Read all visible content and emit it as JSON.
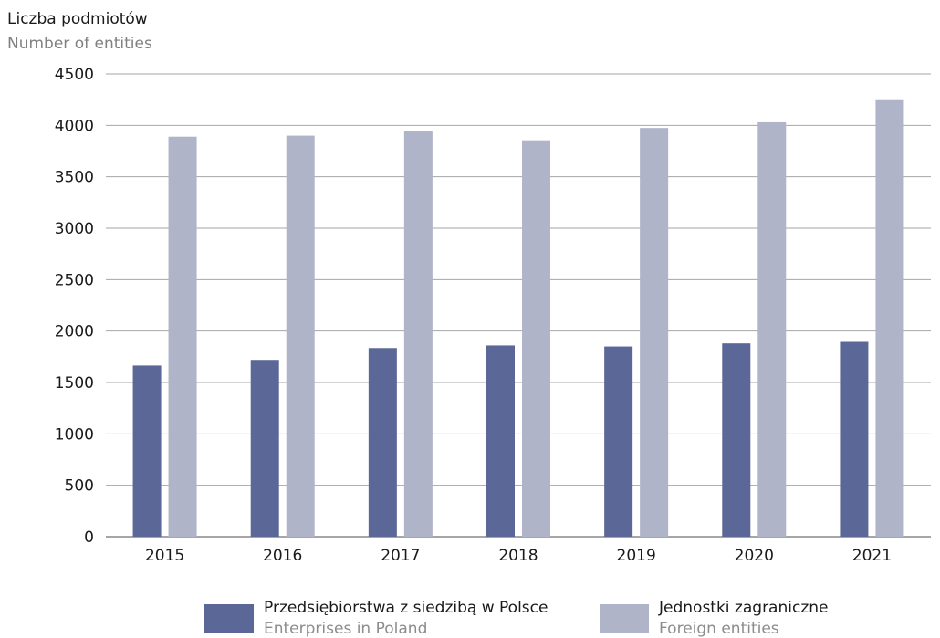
{
  "chart_data": {
    "type": "bar",
    "ylabel": "Liczba podmiotów",
    "ylabel_en": "Number of entities",
    "categories": [
      "2015",
      "2016",
      "2017",
      "2018",
      "2019",
      "2020",
      "2021"
    ],
    "ylim": [
      0,
      4500
    ],
    "yticks": [
      0,
      500,
      1000,
      1500,
      2000,
      2500,
      3000,
      3500,
      4000,
      4500
    ],
    "grid": true,
    "legend_position": "bottom",
    "series": [
      {
        "name": "Przedsiębiorstwa z siedzibą w Polsce",
        "name_en": "Enterprises in Poland",
        "color": "#5b6796",
        "values": [
          1665,
          1720,
          1835,
          1860,
          1850,
          1880,
          1895
        ]
      },
      {
        "name": "Jednostki zagraniczne",
        "name_en": "Foreign entities",
        "color": "#afb4c8",
        "values": [
          3890,
          3900,
          3945,
          3855,
          3975,
          4030,
          4245
        ]
      }
    ]
  }
}
